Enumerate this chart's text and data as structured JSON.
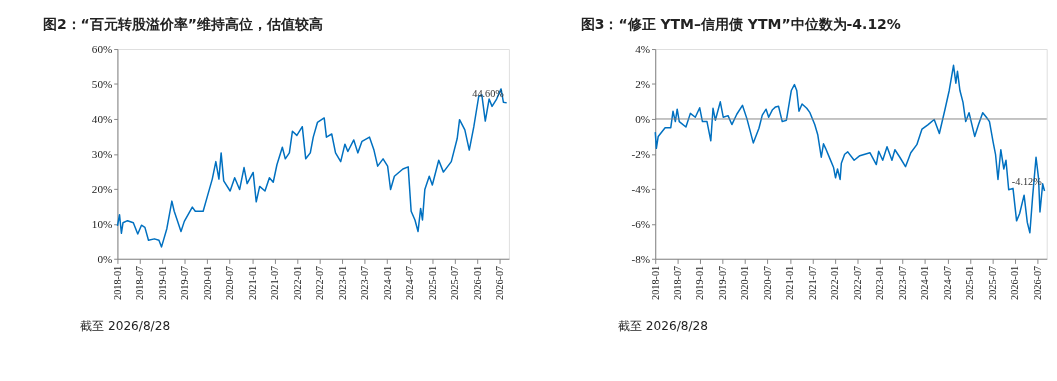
{
  "chart_data": [
    {
      "type": "line",
      "title": "图2：“百元转股溢价率”维持高位，估值较高",
      "x": [
        "2018-01-01",
        "2018-01-18",
        "2018-02-02",
        "2018-02-15",
        "2018-03-24",
        "2018-05-10",
        "2018-06-15",
        "2018-07-15",
        "2018-08-12",
        "2018-09-10",
        "2018-10-28",
        "2018-12-04",
        "2018-12-25",
        "2019-02-06",
        "2019-03-19",
        "2019-04-07",
        "2019-05-01",
        "2019-06-01",
        "2019-06-28",
        "2019-09-01",
        "2019-09-25",
        "2019-11-28",
        "2020-01-04",
        "2020-02-10",
        "2020-03-10",
        "2020-04-04",
        "2020-04-22",
        "2020-05-13",
        "2020-07-04",
        "2020-08-10",
        "2020-09-19",
        "2020-10-25",
        "2020-11-19",
        "2021-01-07",
        "2021-02-01",
        "2021-03-01",
        "2021-04-13",
        "2021-05-19",
        "2021-06-19",
        "2021-07-19",
        "2021-09-01",
        "2021-09-25",
        "2021-10-28",
        "2021-11-22",
        "2021-12-28",
        "2022-02-10",
        "2022-03-10",
        "2022-04-16",
        "2022-05-10",
        "2022-06-13",
        "2022-08-07",
        "2022-08-25",
        "2022-10-07",
        "2022-11-07",
        "2022-12-19",
        "2023-01-22",
        "2023-02-15",
        "2023-04-04",
        "2023-05-07",
        "2023-06-10",
        "2023-08-10",
        "2023-09-15",
        "2023-10-15",
        "2023-11-28",
        "2024-01-04",
        "2024-01-28",
        "2024-02-28",
        "2024-05-07",
        "2024-06-19",
        "2024-07-13",
        "2024-08-13",
        "2024-09-07",
        "2024-09-28",
        "2024-10-13",
        "2024-11-01",
        "2024-12-07",
        "2025-01-01",
        "2025-02-22",
        "2025-04-01",
        "2025-06-04",
        "2025-07-22",
        "2025-08-10",
        "2025-09-22",
        "2025-10-28",
        "2025-12-04",
        "2026-01-13",
        "2026-02-07",
        "2026-03-07",
        "2026-04-07",
        "2026-05-01",
        "2026-06-07",
        "2026-07-13",
        "2026-08-01",
        "2026-08-28"
      ],
      "series": [
        {
          "color": "#0070c0",
          "values": [
            9.4,
            12.6,
            7.3,
            10.3,
            10.9,
            10.3,
            7.1,
            9.6,
            9.0,
            5.3,
            5.7,
            5.3,
            3.4,
            8.6,
            16.5,
            13.6,
            11.1,
            7.8,
            10.7,
            14.8,
            13.6,
            13.6,
            18.2,
            22.8,
            27.8,
            22.8,
            30.3,
            22.3,
            19.4,
            23.2,
            19.8,
            26.1,
            21.5,
            24.7,
            16.3,
            20.7,
            19.4,
            23.2,
            21.9,
            26.9,
            31.9,
            28.6,
            30.3,
            36.5,
            35.3,
            37.8,
            28.6,
            30.3,
            34.8,
            39.0,
            40.3,
            34.8,
            35.7,
            30.3,
            27.8,
            32.8,
            30.7,
            34.0,
            30.3,
            33.6,
            34.8,
            31.1,
            26.5,
            28.6,
            26.5,
            19.8,
            23.6,
            25.7,
            26.3,
            13.6,
            11.1,
            7.8,
            14.4,
            11.1,
            19.8,
            23.6,
            21.1,
            28.2,
            24.8,
            27.8,
            34.4,
            39.8,
            36.9,
            31.1,
            37.8,
            46.5,
            46.9,
            39.4,
            45.7,
            43.6,
            45.7,
            48.6,
            44.8,
            44.6
          ]
        }
      ],
      "xlim": [
        "2018-01-01",
        "2026-09-15"
      ],
      "xticks": [
        "2018-01",
        "2018-07",
        "2019-01",
        "2019-07",
        "2020-01",
        "2020-07",
        "2021-01",
        "2021-07",
        "2022-01",
        "2022-07",
        "2023-01",
        "2023-07",
        "2024-01",
        "2024-07",
        "2025-01",
        "2025-07",
        "2026-01",
        "2026-07"
      ],
      "ylim": [
        0,
        60
      ],
      "yticks": [
        {
          "value": 0,
          "label": "0%"
        },
        {
          "value": 10,
          "label": "10%"
        },
        {
          "value": 20,
          "label": "20%"
        },
        {
          "value": 30,
          "label": "30%"
        },
        {
          "value": 40,
          "label": "40%"
        },
        {
          "value": 50,
          "label": "50%"
        },
        {
          "value": 60,
          "label": "60%"
        }
      ],
      "grid": false,
      "annotations": [
        {
          "text": "44.60%",
          "x": "2026-08-28",
          "y": 44.6
        },
        "截至 2026/8/28"
      ]
    },
    {
      "type": "line",
      "title": "图3：“修正 YTM–信用债 YTM”中位数为-4.12%",
      "x": [
        "2018-01-01",
        "2018-01-10",
        "2018-01-25",
        "2018-03-22",
        "2018-05-07",
        "2018-05-25",
        "2018-06-13",
        "2018-06-28",
        "2018-07-15",
        "2018-09-07",
        "2018-10-13",
        "2018-11-22",
        "2018-12-28",
        "2019-01-19",
        "2019-02-25",
        "2019-03-28",
        "2019-04-15",
        "2019-05-04",
        "2019-06-13",
        "2019-07-07",
        "2019-08-15",
        "2019-09-15",
        "2019-10-25",
        "2019-12-10",
        "2020-01-15",
        "2020-03-07",
        "2020-04-22",
        "2020-05-19",
        "2020-06-19",
        "2020-07-10",
        "2020-08-10",
        "2020-09-04",
        "2020-09-28",
        "2020-10-28",
        "2020-12-01",
        "2021-01-10",
        "2021-02-04",
        "2021-02-23",
        "2021-03-13",
        "2021-04-07",
        "2021-05-15",
        "2021-06-10",
        "2021-07-19",
        "2021-08-13",
        "2021-09-10",
        "2021-09-28",
        "2021-10-15",
        "2021-11-19",
        "2021-12-19",
        "2022-01-04",
        "2022-01-20",
        "2022-02-10",
        "2022-02-20",
        "2022-03-19",
        "2022-04-13",
        "2022-06-04",
        "2022-07-20",
        "2022-10-10",
        "2022-12-01",
        "2022-12-20",
        "2023-01-22",
        "2023-02-26",
        "2023-04-07",
        "2023-05-01",
        "2023-06-10",
        "2023-07-26",
        "2023-09-07",
        "2023-10-26",
        "2023-12-07",
        "2024-01-26",
        "2024-03-15",
        "2024-04-26",
        "2024-06-10",
        "2024-07-15",
        "2024-08-19",
        "2024-09-07",
        "2024-09-20",
        "2024-10-10",
        "2024-11-04",
        "2024-11-26",
        "2024-12-23",
        "2025-02-07",
        "2025-03-10",
        "2025-04-13",
        "2025-05-13",
        "2025-06-07",
        "2025-07-07",
        "2025-07-26",
        "2025-08-15",
        "2025-09-07",
        "2025-10-01",
        "2025-10-19",
        "2025-11-10",
        "2025-12-15",
        "2026-01-13",
        "2026-02-07",
        "2026-03-15",
        "2026-04-10",
        "2026-05-01",
        "2026-05-23",
        "2026-06-20",
        "2026-07-10",
        "2026-07-22",
        "2026-08-13",
        "2026-08-28"
      ],
      "series": [
        {
          "color": "#0070c0",
          "values": [
            -0.75,
            -1.68,
            -1.0,
            -0.5,
            -0.5,
            0.44,
            -0.15,
            0.56,
            -0.15,
            -0.46,
            0.32,
            0.1,
            0.64,
            -0.15,
            -0.15,
            -1.25,
            0.61,
            -0.07,
            0.98,
            0.1,
            0.19,
            -0.32,
            0.27,
            0.78,
            0.02,
            -1.37,
            -0.53,
            0.22,
            0.56,
            0.1,
            0.53,
            0.69,
            0.73,
            -0.15,
            -0.07,
            1.63,
            1.97,
            1.63,
            0.44,
            0.86,
            0.61,
            0.36,
            -0.32,
            -0.92,
            -2.19,
            -1.42,
            -1.68,
            -2.27,
            -2.78,
            -3.37,
            -2.86,
            -3.46,
            -2.53,
            -2.02,
            -1.88,
            -2.36,
            -2.1,
            -1.93,
            -2.61,
            -1.85,
            -2.36,
            -1.59,
            -2.36,
            -1.76,
            -2.19,
            -2.73,
            -1.93,
            -1.47,
            -0.58,
            -0.32,
            -0.03,
            -0.83,
            0.53,
            1.63,
            3.07,
            2.05,
            2.73,
            1.63,
            0.95,
            -0.15,
            0.36,
            -1.0,
            -0.32,
            0.36,
            0.1,
            -0.15,
            -1.34,
            -2.02,
            -3.46,
            -1.76,
            -2.86,
            -2.36,
            -4.05,
            -3.97,
            -5.83,
            -5.41,
            -4.36,
            -5.92,
            -6.51,
            -4.47,
            -2.19,
            -3.37,
            -5.32,
            -3.71,
            -4.12
          ]
        }
      ],
      "xlim": [
        "2018-01-01",
        "2026-09-15"
      ],
      "xticks": [
        "2018-01",
        "2018-07",
        "2019-01",
        "2019-07",
        "2020-01",
        "2020-07",
        "2021-01",
        "2021-07",
        "2022-01",
        "2022-07",
        "2023-01",
        "2023-07",
        "2024-01",
        "2024-07",
        "2025-01",
        "2025-07",
        "2026-01",
        "2026-07"
      ],
      "ylim": [
        -8,
        4
      ],
      "yticks": [
        {
          "value": -8,
          "label": "-8%"
        },
        {
          "value": -6,
          "label": "-6%"
        },
        {
          "value": -4,
          "label": "-4%"
        },
        {
          "value": -2,
          "label": "-2%"
        },
        {
          "value": 0,
          "label": "0%"
        },
        {
          "value": 2,
          "label": "2%"
        },
        {
          "value": 4,
          "label": "4%"
        }
      ],
      "ref_lines": [
        {
          "axis": "y",
          "value": 0,
          "color": "#808080"
        }
      ],
      "grid": false,
      "annotations": [
        {
          "text": "-4.12%",
          "x": "2026-08-28",
          "y": -4.12
        },
        "截至 2026/8/28"
      ]
    }
  ]
}
